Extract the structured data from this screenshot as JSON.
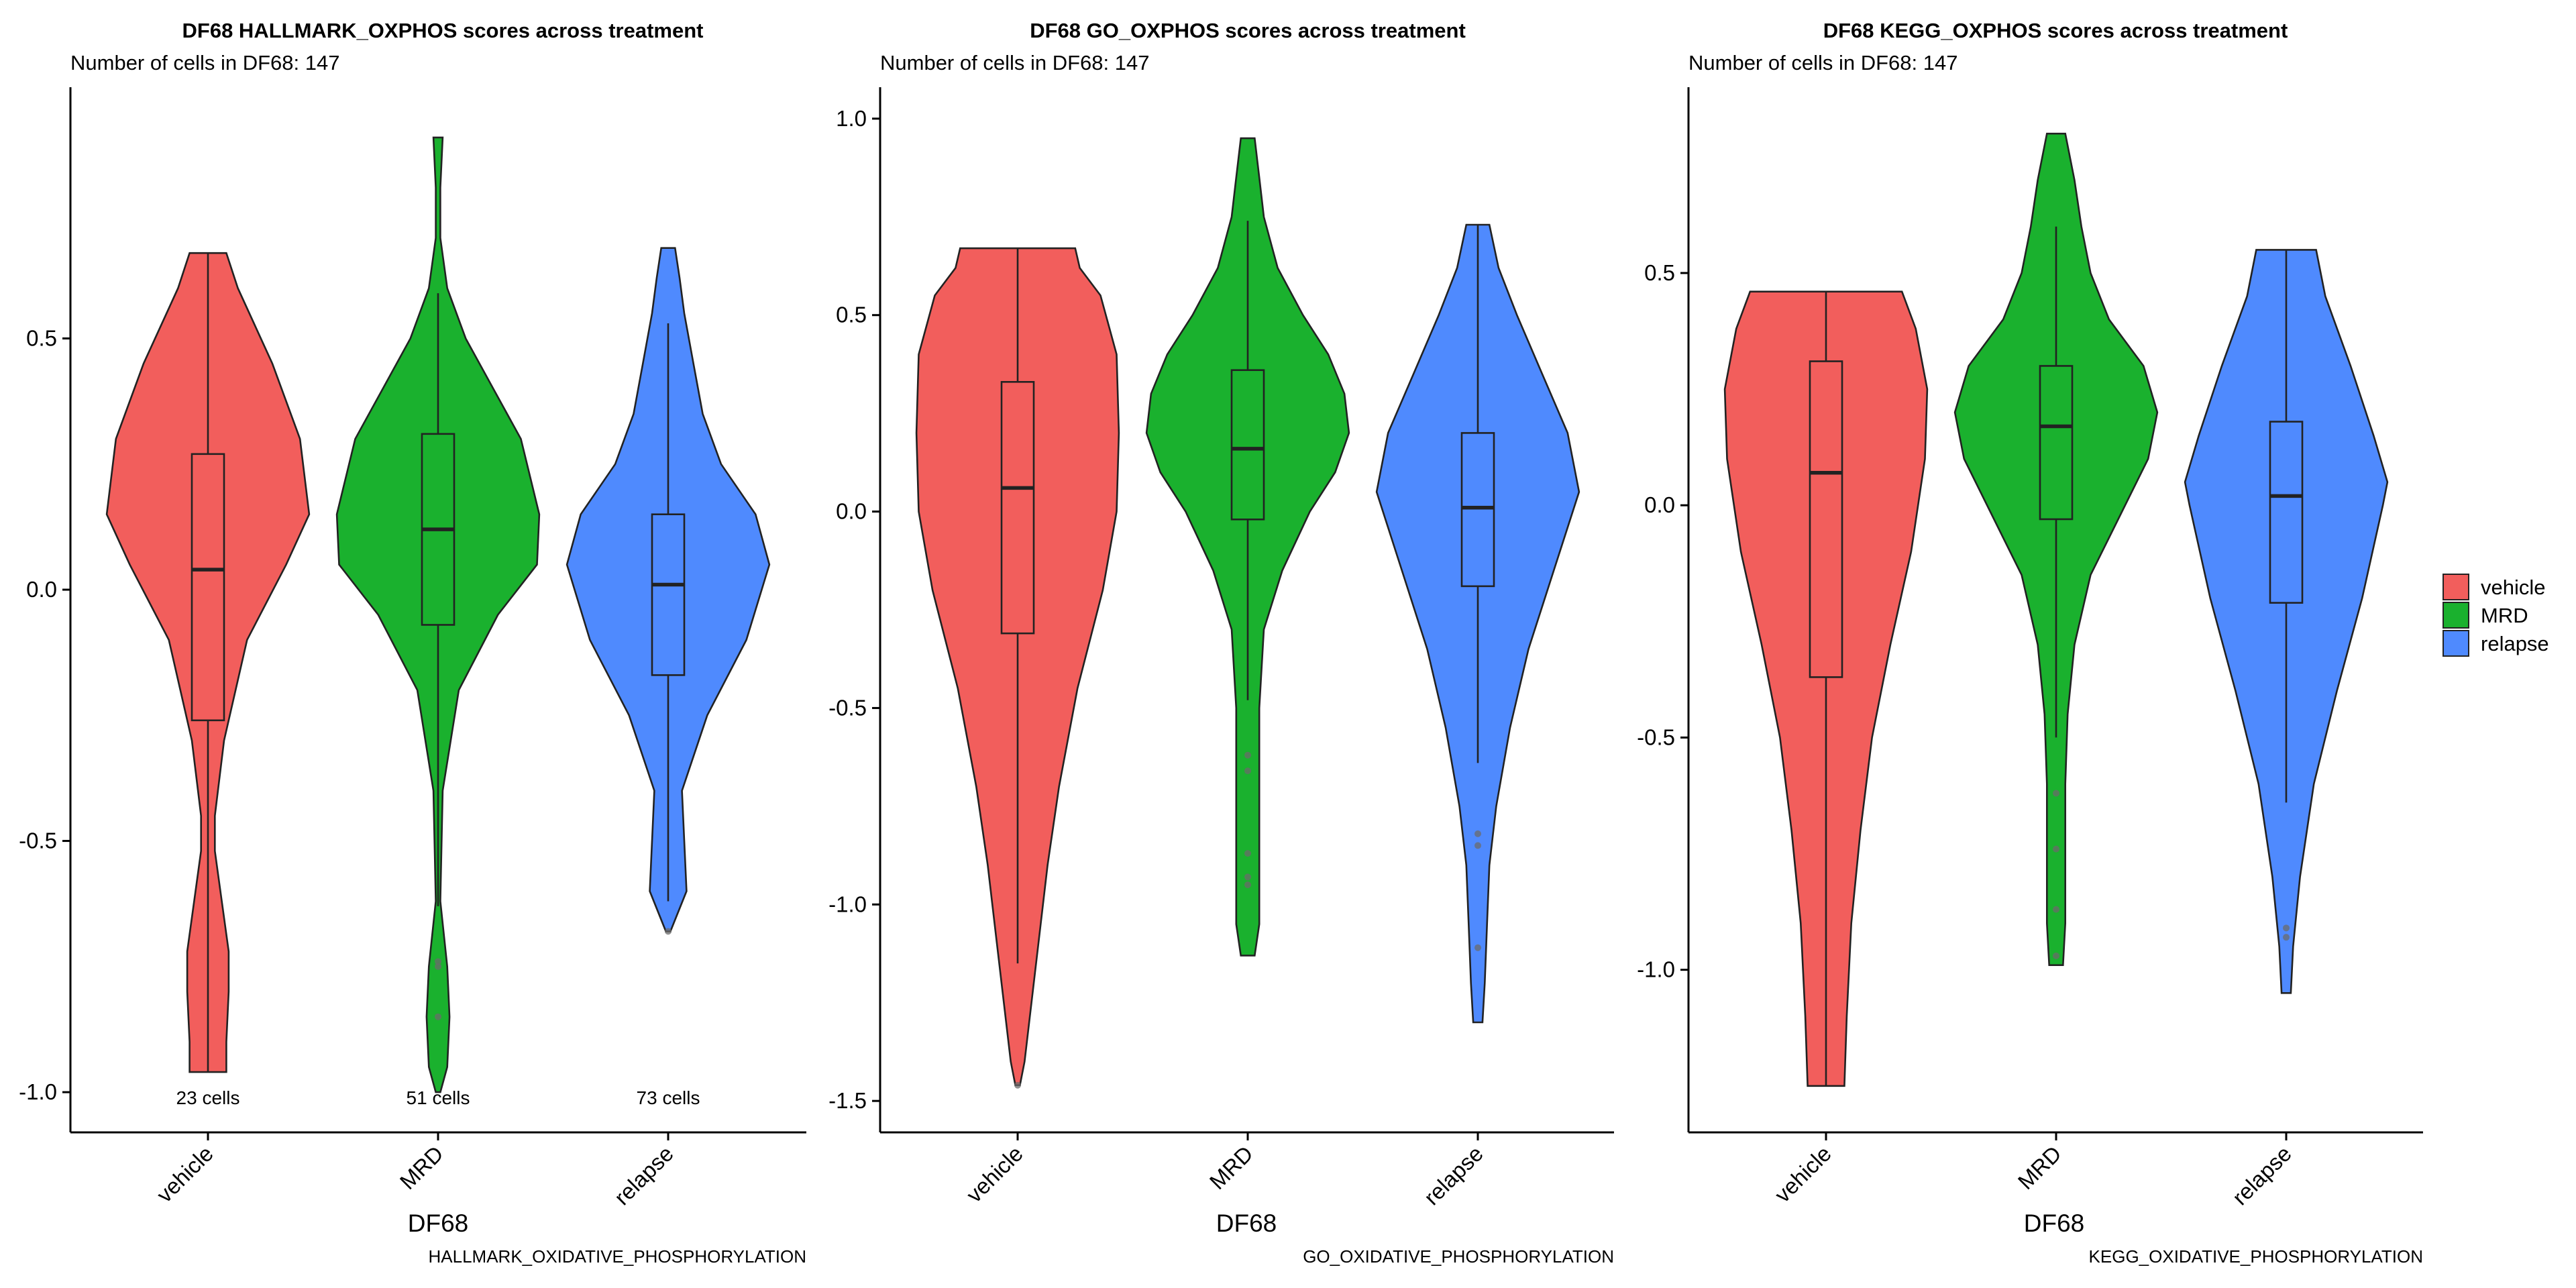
{
  "legend": {
    "items": [
      {
        "label": "vehicle",
        "color": "#F25E5C"
      },
      {
        "label": "MRD",
        "color": "#1AB12E"
      },
      {
        "label": "relapse",
        "color": "#4F8AFE"
      }
    ]
  },
  "chart_data": [
    {
      "type": "violin",
      "title": "DF68 HALLMARK_OXPHOS scores across treatment",
      "subtitle": "Number of cells in DF68: 147",
      "xlabel": "DF68",
      "caption": "HALLMARK_OXIDATIVE_PHOSPHORYLATION",
      "ylim": [
        -1.08,
        1.0
      ],
      "yticks": [
        0.5,
        0.0,
        -0.5,
        -1.0
      ],
      "ytick_labels": [
        "0.5",
        "0.0",
        "-0.5",
        "-1.0"
      ],
      "categories": [
        "vehicle",
        "MRD",
        "relapse"
      ],
      "count_labels": [
        "23 cells",
        "51 cells",
        "73 cells"
      ],
      "series": [
        {
          "name": "vehicle",
          "color": "#F25E5C",
          "max_halfwidth": 0.44,
          "wmin": -0.96,
          "wmax": 0.67,
          "q1": -0.26,
          "median": 0.04,
          "q3": 0.27,
          "outliers": [],
          "profile": [
            [
              -0.96,
              0.08
            ],
            [
              -0.9,
              0.08
            ],
            [
              -0.8,
              0.09
            ],
            [
              -0.72,
              0.09
            ],
            [
              -0.62,
              0.06
            ],
            [
              -0.52,
              0.03
            ],
            [
              -0.45,
              0.03
            ],
            [
              -0.3,
              0.07
            ],
            [
              -0.1,
              0.17
            ],
            [
              0.05,
              0.34
            ],
            [
              0.15,
              0.44
            ],
            [
              0.3,
              0.4
            ],
            [
              0.45,
              0.28
            ],
            [
              0.6,
              0.13
            ],
            [
              0.67,
              0.08
            ]
          ]
        },
        {
          "name": "MRD",
          "color": "#1AB12E",
          "max_halfwidth": 0.44,
          "wmin": -0.63,
          "wmax": 0.59,
          "q1": -0.07,
          "median": 0.12,
          "q3": 0.31,
          "outliers": [
            -0.74,
            -0.75,
            -0.85
          ],
          "profile": [
            [
              -1.0,
              0.01
            ],
            [
              -0.95,
              0.04
            ],
            [
              -0.85,
              0.05
            ],
            [
              -0.75,
              0.04
            ],
            [
              -0.62,
              0.01
            ],
            [
              -0.4,
              0.02
            ],
            [
              -0.2,
              0.09
            ],
            [
              -0.05,
              0.26
            ],
            [
              0.05,
              0.43
            ],
            [
              0.15,
              0.44
            ],
            [
              0.3,
              0.36
            ],
            [
              0.4,
              0.24
            ],
            [
              0.5,
              0.12
            ],
            [
              0.6,
              0.04
            ],
            [
              0.7,
              0.01
            ],
            [
              0.8,
              0.01
            ],
            [
              0.9,
              0.02
            ]
          ]
        },
        {
          "name": "relapse",
          "color": "#4F8AFE",
          "max_halfwidth": 0.44,
          "wmin": -0.62,
          "wmax": 0.53,
          "q1": -0.17,
          "median": 0.01,
          "q3": 0.15,
          "outliers": [
            -0.68
          ],
          "profile": [
            [
              -0.68,
              0.01
            ],
            [
              -0.6,
              0.08
            ],
            [
              -0.5,
              0.07
            ],
            [
              -0.4,
              0.06
            ],
            [
              -0.25,
              0.17
            ],
            [
              -0.1,
              0.34
            ],
            [
              0.05,
              0.44
            ],
            [
              0.15,
              0.38
            ],
            [
              0.25,
              0.23
            ],
            [
              0.35,
              0.15
            ],
            [
              0.45,
              0.11
            ],
            [
              0.55,
              0.07
            ],
            [
              0.62,
              0.05
            ],
            [
              0.68,
              0.03
            ]
          ]
        }
      ]
    },
    {
      "type": "violin",
      "title": "DF68 GO_OXPHOS scores across treatment",
      "subtitle": "Number of cells in DF68: 147",
      "xlabel": "DF68",
      "caption": "GO_OXIDATIVE_PHOSPHORYLATION",
      "ylim": [
        -1.58,
        1.08
      ],
      "yticks": [
        1.0,
        0.5,
        0.0,
        -0.5,
        -1.0,
        -1.5
      ],
      "ytick_labels": [
        "1.0",
        "0.5",
        "0.0",
        "-0.5",
        "-1.0",
        "-1.5"
      ],
      "categories": [
        "vehicle",
        "MRD",
        "relapse"
      ],
      "count_labels": [],
      "series": [
        {
          "name": "vehicle",
          "color": "#F25E5C",
          "max_halfwidth": 0.44,
          "wmin": -1.15,
          "wmax": 0.67,
          "q1": -0.31,
          "median": 0.06,
          "q3": 0.33,
          "outliers": [
            -1.46
          ],
          "profile": [
            [
              -1.46,
              0.01
            ],
            [
              -1.4,
              0.03
            ],
            [
              -1.25,
              0.06
            ],
            [
              -1.1,
              0.09
            ],
            [
              -0.9,
              0.13
            ],
            [
              -0.7,
              0.18
            ],
            [
              -0.45,
              0.26
            ],
            [
              -0.2,
              0.37
            ],
            [
              0.0,
              0.43
            ],
            [
              0.2,
              0.44
            ],
            [
              0.4,
              0.43
            ],
            [
              0.55,
              0.36
            ],
            [
              0.62,
              0.27
            ],
            [
              0.67,
              0.25
            ]
          ]
        },
        {
          "name": "MRD",
          "color": "#1AB12E",
          "max_halfwidth": 0.44,
          "wmin": -0.48,
          "wmax": 0.74,
          "q1": -0.02,
          "median": 0.16,
          "q3": 0.36,
          "outliers": [
            -0.62,
            -0.66,
            -0.87,
            -0.93,
            -0.95
          ],
          "profile": [
            [
              -1.13,
              0.03
            ],
            [
              -1.05,
              0.05
            ],
            [
              -0.9,
              0.05
            ],
            [
              -0.7,
              0.05
            ],
            [
              -0.5,
              0.05
            ],
            [
              -0.3,
              0.07
            ],
            [
              -0.15,
              0.15
            ],
            [
              0.0,
              0.27
            ],
            [
              0.1,
              0.38
            ],
            [
              0.2,
              0.44
            ],
            [
              0.3,
              0.42
            ],
            [
              0.4,
              0.35
            ],
            [
              0.5,
              0.24
            ],
            [
              0.62,
              0.13
            ],
            [
              0.75,
              0.07
            ],
            [
              0.85,
              0.05
            ],
            [
              0.95,
              0.03
            ]
          ]
        },
        {
          "name": "relapse",
          "color": "#4F8AFE",
          "max_halfwidth": 0.44,
          "wmin": -0.64,
          "wmax": 0.73,
          "q1": -0.19,
          "median": 0.01,
          "q3": 0.2,
          "outliers": [
            -0.82,
            -0.85,
            -1.11
          ],
          "profile": [
            [
              -1.3,
              0.02
            ],
            [
              -1.2,
              0.03
            ],
            [
              -1.05,
              0.04
            ],
            [
              -0.9,
              0.05
            ],
            [
              -0.75,
              0.08
            ],
            [
              -0.55,
              0.14
            ],
            [
              -0.35,
              0.22
            ],
            [
              -0.15,
              0.33
            ],
            [
              0.05,
              0.44
            ],
            [
              0.2,
              0.39
            ],
            [
              0.35,
              0.28
            ],
            [
              0.5,
              0.17
            ],
            [
              0.62,
              0.09
            ],
            [
              0.73,
              0.05
            ]
          ]
        }
      ]
    },
    {
      "type": "violin",
      "title": "DF68 KEGG_OXPHOS scores across treatment",
      "subtitle": "Number of cells in DF68: 147",
      "xlabel": "DF68",
      "caption": "KEGG_OXIDATIVE_PHOSPHORYLATION",
      "ylim": [
        -1.35,
        0.9
      ],
      "yticks": [
        0.5,
        0.0,
        -0.5,
        -1.0
      ],
      "ytick_labels": [
        "0.5",
        "0.0",
        "-0.5",
        "-1.0"
      ],
      "categories": [
        "vehicle",
        "MRD",
        "relapse"
      ],
      "count_labels": [],
      "series": [
        {
          "name": "vehicle",
          "color": "#F25E5C",
          "max_halfwidth": 0.44,
          "wmin": -1.25,
          "wmax": 0.46,
          "q1": -0.37,
          "median": 0.07,
          "q3": 0.31,
          "outliers": [],
          "profile": [
            [
              -1.25,
              0.08
            ],
            [
              -1.1,
              0.09
            ],
            [
              -0.9,
              0.11
            ],
            [
              -0.7,
              0.15
            ],
            [
              -0.5,
              0.2
            ],
            [
              -0.3,
              0.28
            ],
            [
              -0.1,
              0.37
            ],
            [
              0.1,
              0.43
            ],
            [
              0.25,
              0.44
            ],
            [
              0.38,
              0.39
            ],
            [
              0.46,
              0.33
            ]
          ]
        },
        {
          "name": "MRD",
          "color": "#1AB12E",
          "max_halfwidth": 0.44,
          "wmin": -0.5,
          "wmax": 0.6,
          "q1": -0.03,
          "median": 0.17,
          "q3": 0.3,
          "outliers": [
            -0.62,
            -0.74,
            -0.87,
            -0.97
          ],
          "profile": [
            [
              -0.99,
              0.03
            ],
            [
              -0.9,
              0.04
            ],
            [
              -0.75,
              0.04
            ],
            [
              -0.6,
              0.04
            ],
            [
              -0.45,
              0.05
            ],
            [
              -0.3,
              0.08
            ],
            [
              -0.15,
              0.15
            ],
            [
              0.0,
              0.3
            ],
            [
              0.1,
              0.4
            ],
            [
              0.2,
              0.44
            ],
            [
              0.3,
              0.38
            ],
            [
              0.4,
              0.23
            ],
            [
              0.5,
              0.15
            ],
            [
              0.6,
              0.11
            ],
            [
              0.7,
              0.08
            ],
            [
              0.8,
              0.04
            ]
          ]
        },
        {
          "name": "relapse",
          "color": "#4F8AFE",
          "max_halfwidth": 0.44,
          "wmin": -0.64,
          "wmax": 0.55,
          "q1": -0.21,
          "median": 0.02,
          "q3": 0.18,
          "outliers": [
            -0.91,
            -0.93
          ],
          "profile": [
            [
              -1.05,
              0.02
            ],
            [
              -0.95,
              0.03
            ],
            [
              -0.8,
              0.06
            ],
            [
              -0.6,
              0.12
            ],
            [
              -0.4,
              0.22
            ],
            [
              -0.2,
              0.33
            ],
            [
              0.0,
              0.42
            ],
            [
              0.05,
              0.44
            ],
            [
              0.15,
              0.38
            ],
            [
              0.3,
              0.28
            ],
            [
              0.45,
              0.17
            ],
            [
              0.55,
              0.13
            ]
          ]
        }
      ]
    }
  ]
}
